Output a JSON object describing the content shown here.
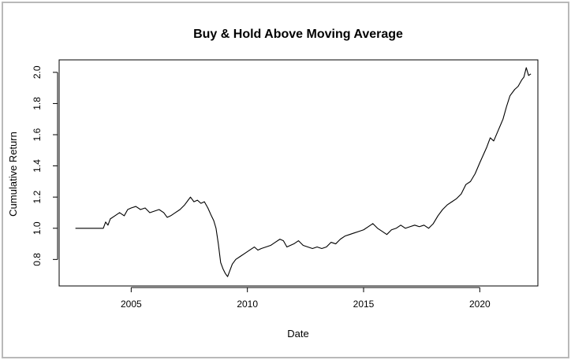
{
  "chart_data": {
    "type": "line",
    "title": "Buy & Hold Above Moving Average",
    "xlabel": "Date",
    "ylabel": "Cumulative Return",
    "xlim": [
      2001.9,
      2022.5
    ],
    "ylim": [
      0.63,
      2.08
    ],
    "x_ticks": [
      {
        "value": 2005,
        "label": "2005"
      },
      {
        "value": 2010,
        "label": "2010"
      },
      {
        "value": 2015,
        "label": "2015"
      },
      {
        "value": 2020,
        "label": "2020"
      }
    ],
    "y_ticks": [
      {
        "value": 0.8,
        "label": "0.8"
      },
      {
        "value": 1.0,
        "label": "1.0"
      },
      {
        "value": 1.2,
        "label": "1.2"
      },
      {
        "value": 1.4,
        "label": "1.4"
      },
      {
        "value": 1.6,
        "label": "1.6"
      },
      {
        "value": 1.8,
        "label": "1.8"
      },
      {
        "value": 2.0,
        "label": "2.0"
      }
    ],
    "grid": false,
    "series": [
      {
        "color": "#000000",
        "points": [
          [
            2002.6,
            1.0
          ],
          [
            2003.0,
            1.0
          ],
          [
            2003.5,
            1.0
          ],
          [
            2003.8,
            1.0
          ],
          [
            2003.9,
            1.04
          ],
          [
            2004.0,
            1.02
          ],
          [
            2004.1,
            1.06
          ],
          [
            2004.3,
            1.08
          ],
          [
            2004.5,
            1.1
          ],
          [
            2004.7,
            1.08
          ],
          [
            2004.85,
            1.12
          ],
          [
            2005.0,
            1.13
          ],
          [
            2005.2,
            1.14
          ],
          [
            2005.4,
            1.12
          ],
          [
            2005.6,
            1.13
          ],
          [
            2005.8,
            1.1
          ],
          [
            2006.0,
            1.11
          ],
          [
            2006.2,
            1.12
          ],
          [
            2006.4,
            1.1
          ],
          [
            2006.55,
            1.07
          ],
          [
            2006.7,
            1.08
          ],
          [
            2006.9,
            1.1
          ],
          [
            2007.1,
            1.12
          ],
          [
            2007.3,
            1.15
          ],
          [
            2007.45,
            1.18
          ],
          [
            2007.55,
            1.2
          ],
          [
            2007.7,
            1.17
          ],
          [
            2007.85,
            1.18
          ],
          [
            2008.0,
            1.16
          ],
          [
            2008.15,
            1.17
          ],
          [
            2008.3,
            1.13
          ],
          [
            2008.45,
            1.08
          ],
          [
            2008.55,
            1.05
          ],
          [
            2008.65,
            1.0
          ],
          [
            2008.75,
            0.9
          ],
          [
            2008.85,
            0.78
          ],
          [
            2008.95,
            0.74
          ],
          [
            2009.05,
            0.71
          ],
          [
            2009.15,
            0.69
          ],
          [
            2009.25,
            0.73
          ],
          [
            2009.35,
            0.77
          ],
          [
            2009.5,
            0.8
          ],
          [
            2009.7,
            0.82
          ],
          [
            2009.9,
            0.84
          ],
          [
            2010.1,
            0.86
          ],
          [
            2010.3,
            0.88
          ],
          [
            2010.45,
            0.86
          ],
          [
            2010.6,
            0.87
          ],
          [
            2010.8,
            0.88
          ],
          [
            2011.0,
            0.89
          ],
          [
            2011.2,
            0.91
          ],
          [
            2011.4,
            0.93
          ],
          [
            2011.55,
            0.92
          ],
          [
            2011.7,
            0.88
          ],
          [
            2011.85,
            0.89
          ],
          [
            2012.0,
            0.9
          ],
          [
            2012.2,
            0.92
          ],
          [
            2012.4,
            0.89
          ],
          [
            2012.6,
            0.88
          ],
          [
            2012.8,
            0.87
          ],
          [
            2013.0,
            0.88
          ],
          [
            2013.2,
            0.87
          ],
          [
            2013.4,
            0.88
          ],
          [
            2013.6,
            0.91
          ],
          [
            2013.8,
            0.9
          ],
          [
            2014.0,
            0.93
          ],
          [
            2014.2,
            0.95
          ],
          [
            2014.4,
            0.96
          ],
          [
            2014.6,
            0.97
          ],
          [
            2014.8,
            0.98
          ],
          [
            2015.0,
            0.99
          ],
          [
            2015.2,
            1.01
          ],
          [
            2015.4,
            1.03
          ],
          [
            2015.6,
            1.0
          ],
          [
            2015.8,
            0.98
          ],
          [
            2016.0,
            0.96
          ],
          [
            2016.2,
            0.99
          ],
          [
            2016.4,
            1.0
          ],
          [
            2016.6,
            1.02
          ],
          [
            2016.8,
            1.0
          ],
          [
            2017.0,
            1.01
          ],
          [
            2017.2,
            1.02
          ],
          [
            2017.4,
            1.01
          ],
          [
            2017.6,
            1.02
          ],
          [
            2017.8,
            1.0
          ],
          [
            2018.0,
            1.03
          ],
          [
            2018.2,
            1.08
          ],
          [
            2018.4,
            1.12
          ],
          [
            2018.6,
            1.15
          ],
          [
            2018.8,
            1.17
          ],
          [
            2019.0,
            1.19
          ],
          [
            2019.2,
            1.22
          ],
          [
            2019.4,
            1.28
          ],
          [
            2019.6,
            1.3
          ],
          [
            2019.8,
            1.35
          ],
          [
            2020.0,
            1.42
          ],
          [
            2020.15,
            1.47
          ],
          [
            2020.3,
            1.52
          ],
          [
            2020.45,
            1.58
          ],
          [
            2020.6,
            1.56
          ],
          [
            2020.8,
            1.63
          ],
          [
            2021.0,
            1.7
          ],
          [
            2021.15,
            1.78
          ],
          [
            2021.3,
            1.85
          ],
          [
            2021.5,
            1.89
          ],
          [
            2021.65,
            1.91
          ],
          [
            2021.8,
            1.95
          ],
          [
            2021.9,
            1.97
          ],
          [
            2022.0,
            2.03
          ],
          [
            2022.1,
            1.98
          ],
          [
            2022.2,
            1.99
          ]
        ]
      }
    ]
  }
}
